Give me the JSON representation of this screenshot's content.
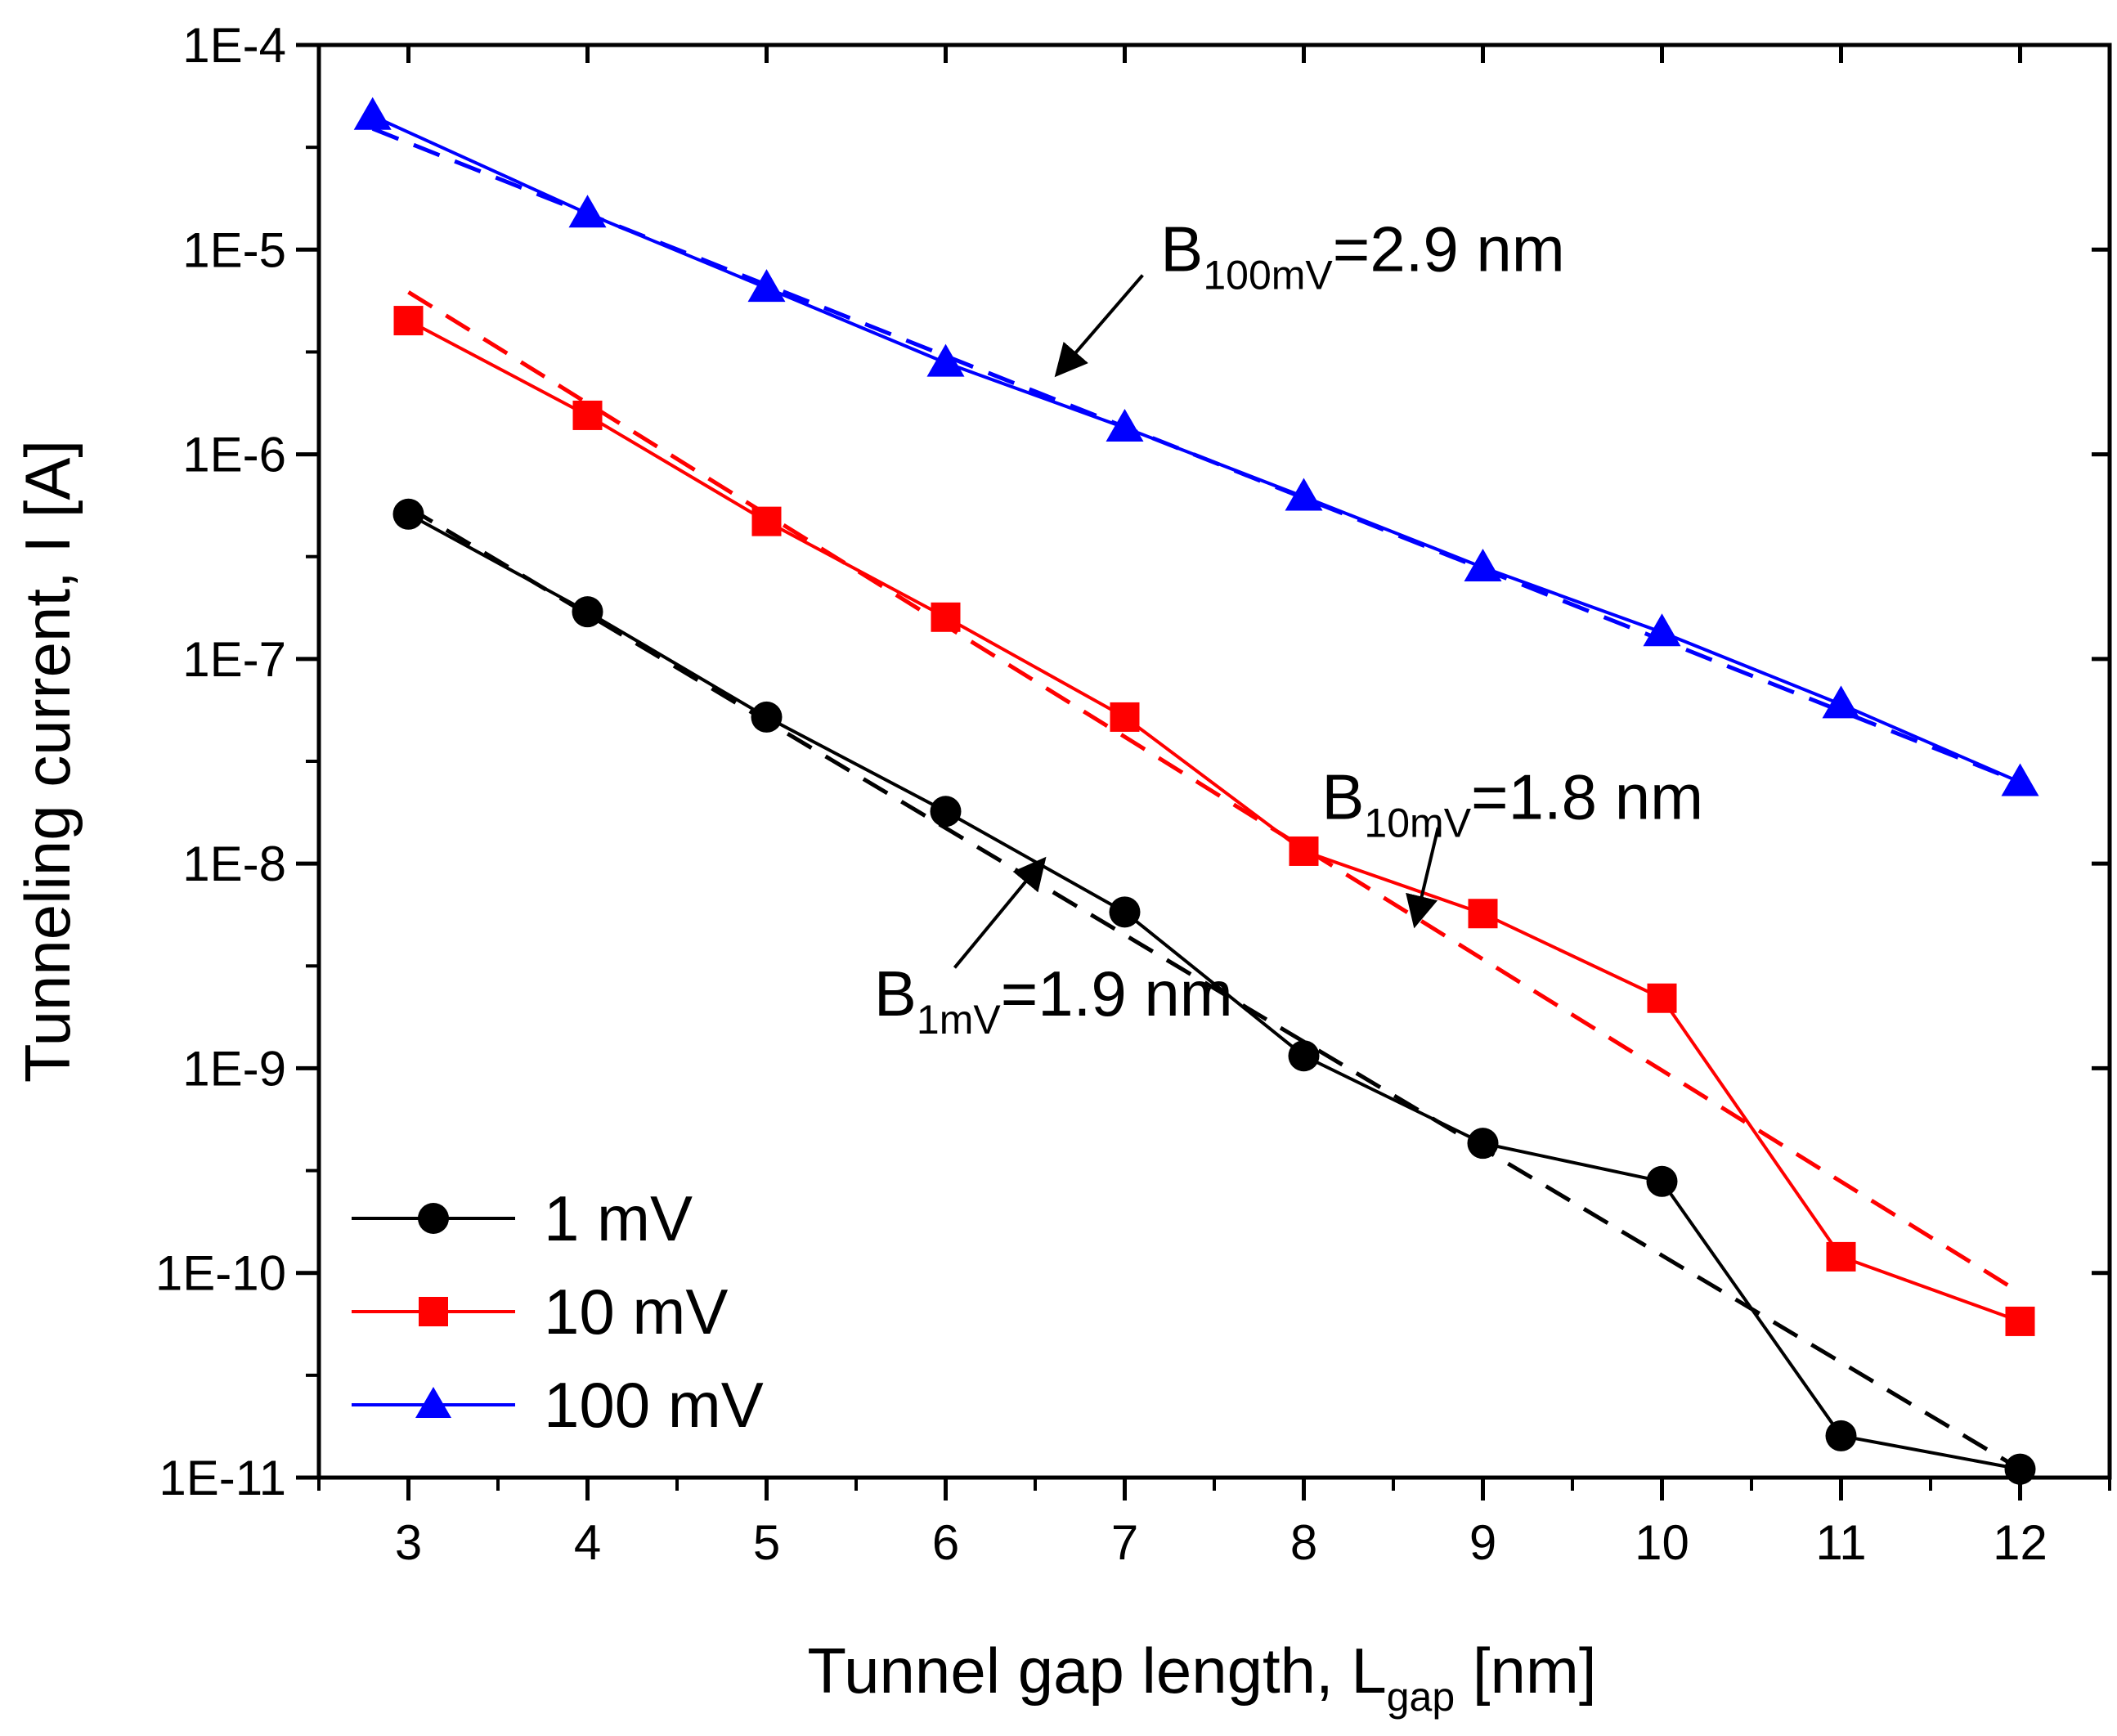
{
  "chart_data": {
    "type": "scatter",
    "xlabel": "Tunnel gap length, L",
    "xlabel_sub": "gap",
    "xlabel_unit": " [nm]",
    "ylabel": "Tunneling current, I [A]",
    "xlim": [
      2.5,
      12.5
    ],
    "ylim": [
      1e-11,
      0.0001
    ],
    "yscale": "log",
    "x_ticks": [
      3,
      4,
      5,
      6,
      7,
      8,
      9,
      10,
      11,
      12
    ],
    "x_tick_labels": [
      "3",
      "4",
      "5",
      "6",
      "7",
      "8",
      "9",
      "10",
      "11",
      "12"
    ],
    "y_ticks_exp": [
      -11,
      -10,
      -9,
      -8,
      -7,
      -6,
      -5,
      -4
    ],
    "y_tick_labels": [
      "1E-11",
      "1E-10",
      "1E-9",
      "1E-8",
      "1E-7",
      "1E-6",
      "1E-5",
      "1E-4"
    ],
    "series": [
      {
        "name": "1 mV",
        "color": "#000000",
        "marker": "circle",
        "x": [
          3,
          4,
          5,
          6,
          7,
          8,
          9,
          10,
          11,
          12
        ],
        "y": [
          5.1e-07,
          1.7e-07,
          5.2e-08,
          1.8e-08,
          5.8e-09,
          1.15e-09,
          4.3e-10,
          2.8e-10,
          1.6e-11,
          1.1e-11
        ],
        "fit": {
          "x": [
            3,
            12
          ],
          "y": [
            5.5e-07,
            1.1e-11
          ]
        }
      },
      {
        "name": "10 mV",
        "color": "#ff0000",
        "marker": "square",
        "x": [
          3,
          4,
          5,
          6,
          7,
          8,
          9,
          10,
          11,
          12
        ],
        "y": [
          4.5e-06,
          1.55e-06,
          4.7e-07,
          1.6e-07,
          5.2e-08,
          1.15e-08,
          5.7e-09,
          2.2e-09,
          1.2e-10,
          5.8e-11
        ],
        "fit": {
          "x": [
            3,
            12
          ],
          "y": [
            6.2e-06,
            8e-11
          ]
        }
      },
      {
        "name": "100 mV",
        "color": "#0000ff",
        "marker": "triangle",
        "x": [
          2.8,
          4,
          5,
          6,
          7,
          8,
          9,
          10,
          11,
          12
        ],
        "y": [
          4.5e-05,
          1.5e-05,
          6.5e-06,
          2.8e-06,
          1.35e-06,
          6.2e-07,
          2.8e-07,
          1.35e-07,
          6e-08,
          2.5e-08
        ],
        "fit": {
          "x": [
            2.8,
            12
          ],
          "y": [
            3.9e-05,
            2.5e-08
          ]
        }
      }
    ],
    "legend": {
      "position": "bottom-left",
      "entries": [
        "1 mV",
        "10 mV",
        "100 mV"
      ]
    },
    "annotations": [
      {
        "main": "B",
        "sub": "100mV",
        "rest": "=2.9 nm",
        "text_x": 7.2,
        "text_y": 1e-05,
        "arrow_from": [
          7.1,
          7.5e-06
        ],
        "arrow_to": [
          6.62,
          2.45e-06
        ]
      },
      {
        "main": "B",
        "sub": "10mV",
        "rest": "=1.8 nm",
        "text_x": 8.1,
        "text_y": 2.1e-08,
        "arrow_from": [
          8.75,
          1.5e-08
        ],
        "arrow_to": [
          8.62,
          5e-09
        ]
      },
      {
        "main": "B",
        "sub": "1mV",
        "rest": "=1.9 nm",
        "text_x": 5.6,
        "text_y": 2.3e-09,
        "arrow_from": [
          6.05,
          3.1e-09
        ],
        "arrow_to": [
          6.55,
          1.05e-08
        ]
      }
    ]
  }
}
